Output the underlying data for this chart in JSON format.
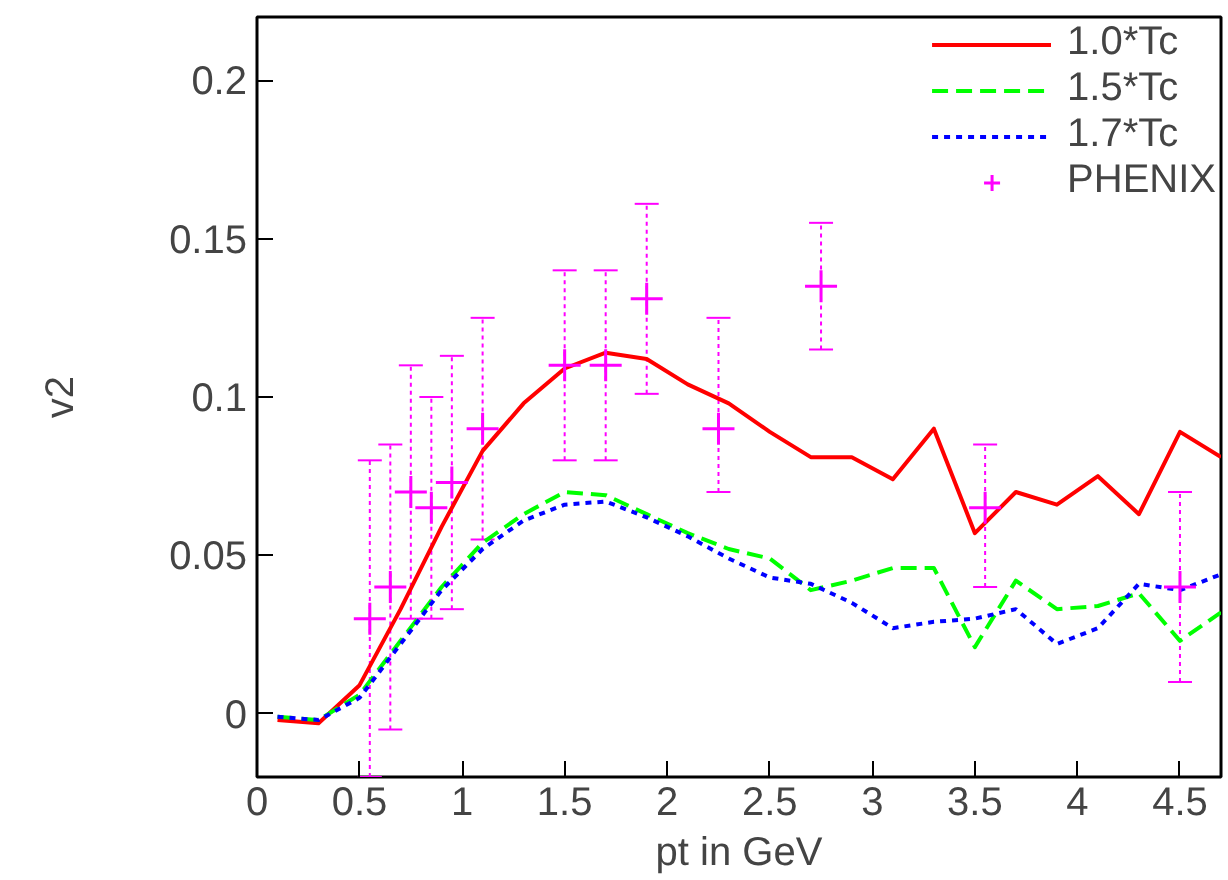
{
  "chart_data": {
    "type": "line",
    "xlabel": "pt in GeV",
    "ylabel": "v2",
    "xlim": [
      0,
      4.7
    ],
    "ylim": [
      -0.02,
      0.22
    ],
    "xticks": [
      0,
      0.5,
      1,
      1.5,
      2,
      2.5,
      3,
      3.5,
      4,
      4.5
    ],
    "yticks": [
      0,
      0.05,
      0.1,
      0.15,
      0.2
    ],
    "grid": false,
    "legend": "top right",
    "x": [
      0.1,
      0.3,
      0.5,
      0.7,
      0.9,
      1.1,
      1.3,
      1.5,
      1.7,
      1.9,
      2.1,
      2.3,
      2.5,
      2.7,
      2.9,
      3.1,
      3.3,
      3.5,
      3.7,
      3.9,
      4.1,
      4.3,
      4.5,
      4.7
    ],
    "series": [
      {
        "name": "1.0*Tc",
        "color": "#ff0000",
        "line_style": "solid",
        "values": [
          -0.002,
          -0.003,
          0.009,
          0.033,
          0.059,
          0.083,
          0.098,
          0.109,
          0.114,
          0.112,
          0.104,
          0.098,
          0.089,
          0.081,
          0.081,
          0.074,
          0.09,
          0.057,
          0.07,
          0.066,
          0.075,
          0.063,
          0.089,
          0.081
        ]
      },
      {
        "name": "1.5*Tc",
        "color": "#00ff00",
        "line_style": "dashed",
        "values": [
          -0.001,
          -0.002,
          0.006,
          0.023,
          0.04,
          0.054,
          0.063,
          0.07,
          0.069,
          0.063,
          0.057,
          0.052,
          0.049,
          0.039,
          0.042,
          0.046,
          0.046,
          0.021,
          0.042,
          0.033,
          0.034,
          0.038,
          0.023,
          0.032
        ]
      },
      {
        "name": "1.7*Tc",
        "color": "#0000ff",
        "line_style": "dotted",
        "values": [
          -0.001,
          -0.002,
          0.005,
          0.022,
          0.039,
          0.052,
          0.061,
          0.066,
          0.067,
          0.062,
          0.056,
          0.049,
          0.043,
          0.041,
          0.035,
          0.027,
          0.029,
          0.03,
          0.033,
          0.022,
          0.027,
          0.041,
          0.039,
          0.044
        ]
      },
      {
        "name": "PHENIX",
        "type": "scatter",
        "marker": "cross",
        "color": "#ff00ff",
        "x": [
          0.55,
          0.65,
          0.75,
          0.85,
          0.95,
          1.1,
          1.5,
          1.7,
          1.9,
          2.25,
          2.75,
          3.55,
          4.5
        ],
        "values": [
          0.03,
          0.04,
          0.07,
          0.065,
          0.073,
          0.09,
          0.11,
          0.11,
          0.131,
          0.09,
          0.135,
          0.065,
          0.04
        ],
        "errors": [
          0.05,
          0.045,
          0.04,
          0.035,
          0.04,
          0.035,
          0.03,
          0.03,
          0.03,
          [
            0.07,
            0.125
          ],
          0.02,
          [
            0.04,
            0.085
          ],
          0.03
        ]
      }
    ]
  }
}
